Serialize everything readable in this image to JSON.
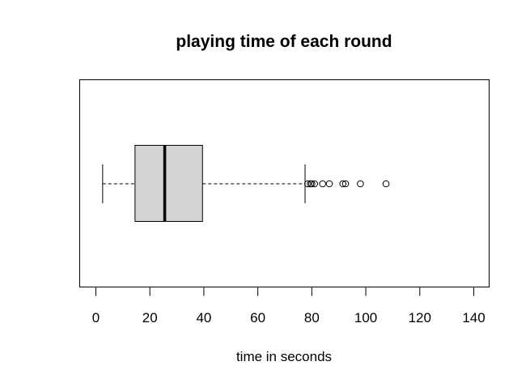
{
  "chart_data": {
    "type": "boxplot",
    "orientation": "horizontal",
    "title": "playing time of each round",
    "xlabel": "time in seconds",
    "ylabel": "",
    "xlim": [
      0,
      140
    ],
    "x_ticks": [
      0,
      20,
      40,
      60,
      80,
      100,
      120,
      140
    ],
    "grid": false,
    "legend": "none",
    "box": {
      "whisker_low": 2.5,
      "q1": 14.5,
      "median": 25.5,
      "q3": 39.5,
      "whisker_high": 77.5,
      "outliers": [
        78.5,
        79.5,
        80,
        81,
        84,
        86.5,
        91.5,
        92.5,
        98,
        107.5
      ]
    },
    "colors": {
      "box_fill": "#d3d3d3",
      "stroke": "#000000"
    }
  }
}
